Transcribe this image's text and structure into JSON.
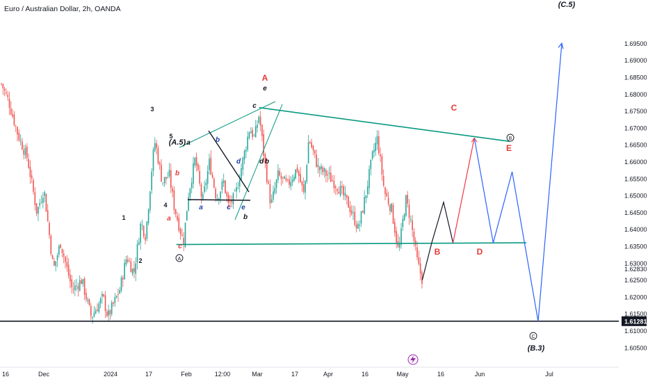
{
  "header": {
    "title": "Euro / Australian Dollar, 2h, OANDA"
  },
  "chart_data": {
    "type": "candlestick",
    "title": "Euro / Australian Dollar, 2h, OANDA",
    "symbol": "EUR/AUD",
    "interval": "2h",
    "source": "OANDA",
    "ylim": [
      1.6032,
      1.7032
    ],
    "y_ticks": [
      "1.69500",
      "1.69000",
      "1.68500",
      "1.68000",
      "1.67500",
      "1.67000",
      "1.66500",
      "1.66000",
      "1.65500",
      "1.65000",
      "1.64500",
      "1.64000",
      "1.63500",
      "1.63000",
      "1.62830",
      "1.62500",
      "1.62000",
      "1.61500",
      "1.61000",
      "1.60500"
    ],
    "last_price_label": "1.61281",
    "x_ticks": [
      "16",
      "Dec",
      "2024",
      "17",
      "Feb",
      "12:00",
      "Mar",
      "17",
      "Apr",
      "16",
      "May",
      "16",
      "Jun",
      "Jul"
    ],
    "colors": {
      "up": "#26a69a",
      "down": "#ef5350",
      "trendline": "#089981",
      "projection_up": "#f23645",
      "projection_down": "#2962ff",
      "wave_label": "#e53935"
    },
    "price_path": [
      {
        "t": "2023-11-13",
        "p": 1.683
      },
      {
        "t": "2023-11-16",
        "p": 1.678
      },
      {
        "t": "2023-11-20",
        "p": 1.668
      },
      {
        "t": "2023-11-24",
        "p": 1.661
      },
      {
        "t": "2023-11-28",
        "p": 1.645
      },
      {
        "t": "2023-12-01",
        "p": 1.652
      },
      {
        "t": "2023-12-05",
        "p": 1.628
      },
      {
        "t": "2023-12-08",
        "p": 1.636
      },
      {
        "t": "2023-12-13",
        "p": 1.622
      },
      {
        "t": "2023-12-17",
        "p": 1.625
      },
      {
        "t": "2023-12-21",
        "p": 1.614
      },
      {
        "t": "2023-12-26",
        "p": 1.62
      },
      {
        "t": "2023-12-28",
        "p": 1.614
      },
      {
        "t": "2024-01-02",
        "p": 1.622
      },
      {
        "t": "2024-01-05",
        "p": 1.632
      },
      {
        "t": "2024-01-08",
        "p": 1.627
      },
      {
        "t": "2024-01-11",
        "p": 1.642
      },
      {
        "t": "2024-01-13",
        "p": 1.638
      },
      {
        "t": "2024-01-16",
        "p": 1.661
      },
      {
        "t": "2024-01-17",
        "p": 1.666
      },
      {
        "t": "2024-01-20",
        "p": 1.654
      },
      {
        "t": "2024-01-23",
        "p": 1.656
      },
      {
        "t": "2024-01-25",
        "p": 1.647
      },
      {
        "t": "2024-01-29",
        "p": 1.636
      },
      {
        "t": "2024-01-31",
        "p": 1.65
      },
      {
        "t": "2024-02-03",
        "p": 1.661
      },
      {
        "t": "2024-02-06",
        "p": 1.648
      },
      {
        "t": "2024-02-09",
        "p": 1.66
      },
      {
        "t": "2024-02-12",
        "p": 1.649
      },
      {
        "t": "2024-02-15",
        "p": 1.654
      },
      {
        "t": "2024-02-17",
        "p": 1.647
      },
      {
        "t": "2024-02-20",
        "p": 1.65
      },
      {
        "t": "2024-02-23",
        "p": 1.66
      },
      {
        "t": "2024-02-26",
        "p": 1.67
      },
      {
        "t": "2024-02-28",
        "p": 1.667
      },
      {
        "t": "2024-03-01",
        "p": 1.674
      },
      {
        "t": "2024-03-03",
        "p": 1.662
      },
      {
        "t": "2024-03-06",
        "p": 1.647
      },
      {
        "t": "2024-03-09",
        "p": 1.656
      },
      {
        "t": "2024-03-13",
        "p": 1.653
      },
      {
        "t": "2024-03-17",
        "p": 1.658
      },
      {
        "t": "2024-03-20",
        "p": 1.65
      },
      {
        "t": "2024-03-22",
        "p": 1.667
      },
      {
        "t": "2024-03-26",
        "p": 1.658
      },
      {
        "t": "2024-03-30",
        "p": 1.656
      },
      {
        "t": "2024-04-04",
        "p": 1.652
      },
      {
        "t": "2024-04-08",
        "p": 1.647
      },
      {
        "t": "2024-04-12",
        "p": 1.64
      },
      {
        "t": "2024-04-15",
        "p": 1.65
      },
      {
        "t": "2024-04-18",
        "p": 1.662
      },
      {
        "t": "2024-04-20",
        "p": 1.667
      },
      {
        "t": "2024-04-23",
        "p": 1.651
      },
      {
        "t": "2024-04-26",
        "p": 1.646
      },
      {
        "t": "2024-04-29",
        "p": 1.633
      },
      {
        "t": "2024-05-02",
        "p": 1.649
      },
      {
        "t": "2024-05-04",
        "p": 1.643
      },
      {
        "t": "2024-05-07",
        "p": 1.63
      },
      {
        "t": "2024-05-09",
        "p": 1.625
      }
    ],
    "drawings": {
      "triangle_top_line": [
        {
          "t": "2024-03-01",
          "p": 1.676
        },
        {
          "t": "2024-06-15",
          "p": 1.666
        }
      ],
      "triangle_bottom_line": [
        {
          "t": "2024-01-26",
          "p": 1.6355
        },
        {
          "t": "2024-06-22",
          "p": 1.636
        }
      ],
      "projection_black": [
        {
          "t": "2024-05-09",
          "p": 1.625
        },
        {
          "t": "2024-05-13",
          "p": 1.636
        },
        {
          "t": "2024-05-18",
          "p": 1.648
        },
        {
          "t": "2024-05-22",
          "p": 1.636
        }
      ],
      "projection_red": [
        {
          "t": "2024-05-22",
          "p": 1.636
        },
        {
          "t": "2024-05-31",
          "p": 1.667
        }
      ],
      "projection_blue": [
        {
          "t": "2024-05-31",
          "p": 1.667
        },
        {
          "t": "2024-06-08",
          "p": 1.636
        },
        {
          "t": "2024-06-16",
          "p": 1.657
        },
        {
          "t": "2024-06-27",
          "p": 1.6128
        },
        {
          "t": "2024-07-07",
          "p": 1.695
        }
      ]
    },
    "wave_labels": [
      {
        "text": "A",
        "color": "#e53935"
      },
      {
        "text": "C",
        "color": "#e53935"
      },
      {
        "text": "B",
        "color": "#e53935"
      },
      {
        "text": "D",
        "color": "#e53935"
      },
      {
        "text": "E",
        "color": "#e53935"
      },
      {
        "text": "(A.5)",
        "color": "#131722"
      },
      {
        "text": "(C.5)",
        "color": "#131722"
      },
      {
        "text": "(B.3)",
        "color": "#131722"
      },
      {
        "text": "a",
        "color": "#131722"
      },
      {
        "text": "b",
        "color": "#1e3ea8"
      },
      {
        "text": "c",
        "color": "#131722"
      },
      {
        "text": "d",
        "color": "#1e3ea8"
      },
      {
        "text": "e",
        "color": "#131722"
      },
      {
        "text": "a",
        "color": "#1e3ea8"
      },
      {
        "text": "b",
        "color": "#131722"
      },
      {
        "text": "c",
        "color": "#1e3ea8"
      },
      {
        "text": "d",
        "color": "#131722"
      },
      {
        "text": "e",
        "color": "#1e3ea8"
      },
      {
        "text": "b",
        "color": "#131722"
      },
      {
        "text": "a",
        "color": "#e53935"
      },
      {
        "text": "b",
        "color": "#e53935"
      },
      {
        "text": "c",
        "color": "#e53935"
      },
      {
        "text": "1",
        "color": "#131722"
      },
      {
        "text": "2",
        "color": "#131722"
      },
      {
        "text": "3",
        "color": "#131722"
      },
      {
        "text": "4",
        "color": "#131722"
      },
      {
        "text": "5",
        "color": "#131722"
      }
    ],
    "circled_labels": [
      "A",
      "B",
      "C"
    ],
    "icons": {
      "bottom_marker": "lightning-icon"
    },
    "grid": false,
    "legend": "none"
  }
}
